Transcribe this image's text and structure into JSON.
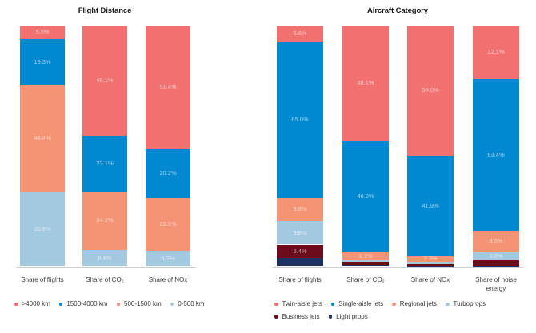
{
  "chart_data": [
    {
      "type": "bar",
      "stacked": true,
      "title": "Flight Distance",
      "xlabel": "",
      "ylabel": "",
      "ylim": [
        0,
        100
      ],
      "unit": "%",
      "grid": false,
      "legend_position": "bottom-left",
      "categories": [
        "Share of flights",
        "Share of CO₂",
        "Share of NOx"
      ],
      "series": [
        {
          "name": ">4000 km",
          "color": "#f07170",
          "values": [
            5.5,
            46.1,
            51.4
          ],
          "labels": [
            "5.5%",
            "46.1%",
            "51.4%"
          ]
        },
        {
          "name": "1500-4000 km",
          "color": "#0088d0",
          "values": [
            19.3,
            23.1,
            20.2
          ],
          "labels": [
            "19.3%",
            "23.1%",
            "20.2%"
          ]
        },
        {
          "name": "500-1500 km",
          "color": "#f59474",
          "values": [
            44.4,
            24.1,
            22.1
          ],
          "labels": [
            "44.4%",
            "24.1%",
            "22.1%"
          ]
        },
        {
          "name": "0-500 km",
          "color": "#a3c9e1",
          "values": [
            30.8,
            6.8,
            6.3
          ],
          "labels": [
            "30.8%",
            "6.8%",
            "6.3%"
          ]
        }
      ]
    },
    {
      "type": "bar",
      "stacked": true,
      "title": "Aircraft Category",
      "xlabel": "",
      "ylabel": "",
      "ylim": [
        0,
        100
      ],
      "unit": "%",
      "grid": false,
      "legend_position": "bottom",
      "categories": [
        "Share of flights",
        "Share of CO₂",
        "Share of NOx",
        "Share of noise energy"
      ],
      "series": [
        {
          "name": "Twin-aisle jets",
          "color": "#f07170",
          "values": [
            6.6,
            48.1,
            54.0,
            22.1
          ],
          "labels": [
            "6.6%",
            "48.1%",
            "54.0%",
            "22.1%"
          ]
        },
        {
          "name": "Single-aisle jets",
          "color": "#0088d0",
          "values": [
            65.0,
            46.3,
            41.9,
            63.4
          ],
          "labels": [
            "65.0%",
            "46.3%",
            "41.9%",
            "63.4%"
          ]
        },
        {
          "name": "Regional jets",
          "color": "#f59474",
          "values": [
            9.8,
            3.1,
            2.3,
            8.5
          ],
          "labels": [
            "9.8%",
            "3.1%",
            "2.3%",
            "8.5%"
          ]
        },
        {
          "name": "Turboprops",
          "color": "#a3c9e1",
          "values": [
            9.8,
            0.8,
            1.0,
            3.8
          ],
          "labels": [
            "9.8%",
            null,
            null,
            "3.8%"
          ]
        },
        {
          "name": "Business jets",
          "color": "#6b0b1b",
          "values": [
            5.4,
            1.5,
            0.7,
            2.1
          ],
          "labels": [
            "5.4%",
            null,
            null,
            null
          ]
        },
        {
          "name": "Light props",
          "color": "#1f3163",
          "values": [
            3.4,
            0.2,
            0.1,
            0.1
          ],
          "labels": [
            null,
            null,
            null,
            null
          ]
        }
      ]
    }
  ]
}
